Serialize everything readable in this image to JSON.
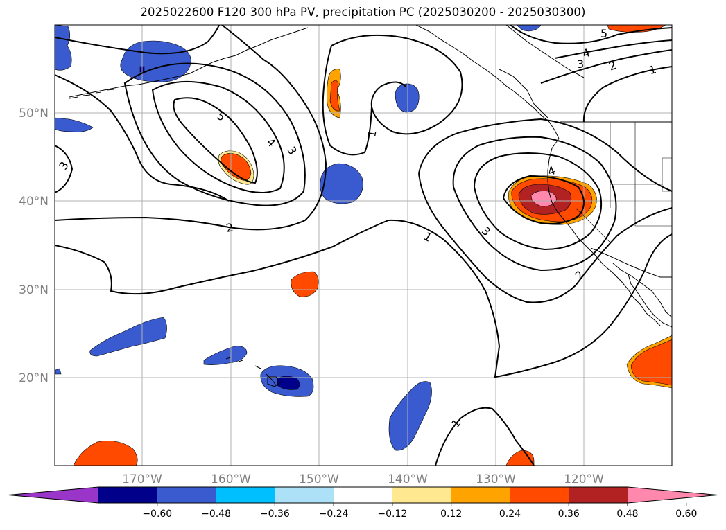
{
  "title": "2025022600 F120 300 hPa PV, precipitation PC (2025030200 - 2025030300)",
  "lat_labels": [
    "50°N",
    "40°N",
    "30°N",
    "20°N"
  ],
  "lon_labels": [
    "170°W",
    "160°W",
    "150°W",
    "140°W",
    "130°W",
    "120°W"
  ],
  "contour_labels": [
    "5",
    "4",
    "3",
    "2",
    "1",
    "3",
    "1",
    "1",
    "3",
    "4",
    "2",
    "3",
    "2",
    "1",
    "5",
    "4",
    "1"
  ],
  "colorbar": {
    "ticks": [
      "−0.60",
      "−0.48",
      "−0.36",
      "−0.24",
      "−0.12",
      "0.12",
      "0.24",
      "0.36",
      "0.48",
      "0.60"
    ],
    "colors": [
      "#9a35c9",
      "#00008b",
      "#3a5bcf",
      "#00bfff",
      "#ade1f7",
      "#ffffff",
      "#ffe88f",
      "#ffa300",
      "#ff4a00",
      "#b32222",
      "#ff88ac"
    ],
    "extend": "both"
  },
  "map": {
    "lon_range": [
      -180,
      -110
    ],
    "lat_range": [
      10,
      60
    ],
    "pv_contour_color": "#000000",
    "gridlines": true,
    "coastlines": true
  }
}
